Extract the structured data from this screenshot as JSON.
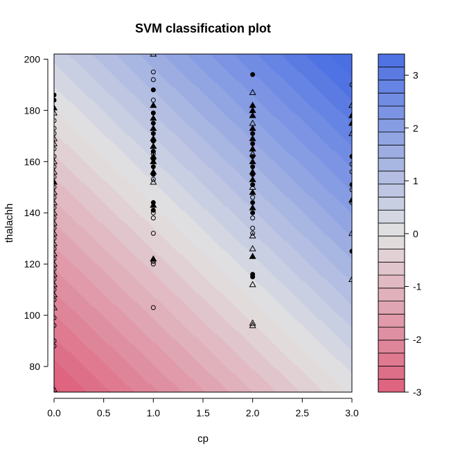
{
  "chart_data": {
    "type": "scatter",
    "title": "SVM classification plot",
    "xlabel": "cp",
    "ylabel": "thalachh",
    "xlim": [
      0,
      3
    ],
    "ylim": [
      70,
      202
    ],
    "xticks": [
      "0.0",
      "0.5",
      "1.0",
      "1.5",
      "2.0",
      "2.5",
      "3.0"
    ],
    "xtick_values": [
      0,
      0.5,
      1,
      1.5,
      2,
      2.5,
      3
    ],
    "yticks": [
      "80",
      "100",
      "120",
      "140",
      "160",
      "180",
      "200"
    ],
    "ytick_values": [
      80,
      100,
      120,
      140,
      160,
      180,
      200
    ],
    "grid": false,
    "background": {
      "type": "filled-contour",
      "decision_value_at_corners": {
        "x0_y70": -3.1,
        "x3_y70": 0.0,
        "x0_y202": 0.55,
        "x3_y202": 3.45
      },
      "low_color": "#de5f7c",
      "mid_color": "#e2e2e2",
      "high_color": "#4a6fe3"
    },
    "colorbar": {
      "range": [
        -3,
        3.4
      ],
      "levels": 26,
      "ticks": [
        "3",
        "2",
        "1",
        "0",
        "-1",
        "-2",
        "-3"
      ],
      "tick_values": [
        3,
        2,
        1,
        0,
        -1,
        -2,
        -3
      ]
    },
    "markers": [
      "filled-circle",
      "open-circle",
      "filled-triangle",
      "open-triangle"
    ],
    "points": {
      "x0": [
        [
          186,
          "fc"
        ],
        [
          184,
          "fc"
        ],
        [
          181,
          "ft"
        ],
        [
          179,
          "ot"
        ],
        [
          176,
          "oc"
        ],
        [
          173,
          "oc"
        ],
        [
          171,
          "oc"
        ],
        [
          169,
          "ot"
        ],
        [
          167,
          "ot"
        ],
        [
          165,
          "oc"
        ],
        [
          162,
          "oc"
        ],
        [
          160,
          "ot"
        ],
        [
          158,
          "oc"
        ],
        [
          156,
          "ot"
        ],
        [
          154,
          "oc"
        ],
        [
          152,
          "ft"
        ],
        [
          150,
          "oc"
        ],
        [
          148,
          "ot"
        ],
        [
          146,
          "oc"
        ],
        [
          144,
          "ot"
        ],
        [
          142,
          "oc"
        ],
        [
          140,
          "ot"
        ],
        [
          138,
          "oc"
        ],
        [
          136,
          "ot"
        ],
        [
          134,
          "oc"
        ],
        [
          132,
          "ot"
        ],
        [
          130,
          "oc"
        ],
        [
          128,
          "ot"
        ],
        [
          126,
          "oc"
        ],
        [
          124,
          "ot"
        ],
        [
          122,
          "oc"
        ],
        [
          120,
          "ot"
        ],
        [
          118,
          "oc"
        ],
        [
          116,
          "ot"
        ],
        [
          114,
          "oc"
        ],
        [
          112,
          "ot"
        ],
        [
          110,
          "oc"
        ],
        [
          108,
          "ot"
        ],
        [
          106,
          "oc"
        ],
        [
          103,
          "ot"
        ],
        [
          99,
          "oc"
        ],
        [
          96,
          "oc"
        ],
        [
          90,
          "oc"
        ],
        [
          88,
          "oc"
        ],
        [
          71,
          "ot"
        ]
      ],
      "x1": [
        [
          202,
          "ot"
        ],
        [
          195,
          "oc"
        ],
        [
          192,
          "oc"
        ],
        [
          188,
          "fc"
        ],
        [
          184,
          "oc"
        ],
        [
          182,
          "ft"
        ],
        [
          179,
          "fc"
        ],
        [
          177,
          "ft"
        ],
        [
          175,
          "fc"
        ],
        [
          173,
          "ft"
        ],
        [
          171,
          "fc"
        ],
        [
          169,
          "ft"
        ],
        [
          168,
          "fc"
        ],
        [
          166,
          "ft"
        ],
        [
          164,
          "fc"
        ],
        [
          163,
          "oc"
        ],
        [
          162,
          "ft"
        ],
        [
          161,
          "fc"
        ],
        [
          160,
          "ft"
        ],
        [
          158,
          "fc"
        ],
        [
          156,
          "ft"
        ],
        [
          155,
          "fc"
        ],
        [
          153,
          "oc"
        ],
        [
          152,
          "ot"
        ],
        [
          144,
          "fc"
        ],
        [
          143,
          "ft"
        ],
        [
          141,
          "fc"
        ],
        [
          140,
          "oc"
        ],
        [
          138,
          "oc"
        ],
        [
          132,
          "oc"
        ],
        [
          122,
          "ft"
        ],
        [
          121,
          "oc"
        ],
        [
          120,
          "oc"
        ],
        [
          103,
          "oc"
        ]
      ],
      "x2": [
        [
          194,
          "fc"
        ],
        [
          187,
          "ot"
        ],
        [
          182,
          "ft"
        ],
        [
          180,
          "ft"
        ],
        [
          178,
          "ft"
        ],
        [
          175,
          "ot"
        ],
        [
          173,
          "ft"
        ],
        [
          171,
          "fc"
        ],
        [
          169,
          "ft"
        ],
        [
          167,
          "fc"
        ],
        [
          165,
          "ft"
        ],
        [
          163,
          "ot"
        ],
        [
          162,
          "fc"
        ],
        [
          160,
          "ft"
        ],
        [
          158,
          "fc"
        ],
        [
          156,
          "ft"
        ],
        [
          155,
          "fc"
        ],
        [
          153,
          "ft"
        ],
        [
          151,
          "fc"
        ],
        [
          150,
          "ot"
        ],
        [
          148,
          "ft"
        ],
        [
          146,
          "oc"
        ],
        [
          144,
          "fc"
        ],
        [
          142,
          "ft"
        ],
        [
          140,
          "fc"
        ],
        [
          138,
          "oc"
        ],
        [
          134,
          "oc"
        ],
        [
          132,
          "oc"
        ],
        [
          131,
          "ot"
        ],
        [
          126,
          "ot"
        ],
        [
          123,
          "ft"
        ],
        [
          116,
          "fc"
        ],
        [
          115,
          "fc"
        ],
        [
          112,
          "ot"
        ],
        [
          97,
          "ot"
        ],
        [
          96,
          "ot"
        ]
      ],
      "x3": [
        [
          190,
          "oc"
        ],
        [
          182,
          "ot"
        ],
        [
          178,
          "ft"
        ],
        [
          175,
          "ft"
        ],
        [
          171,
          "ot"
        ],
        [
          162,
          "fc"
        ],
        [
          159,
          "oc"
        ],
        [
          156,
          "oc"
        ],
        [
          151,
          "fc"
        ],
        [
          149,
          "oc"
        ],
        [
          145,
          "ft"
        ],
        [
          144,
          "oc"
        ],
        [
          132,
          "ot"
        ],
        [
          125,
          "fc"
        ],
        [
          114,
          "ot"
        ]
      ]
    }
  }
}
